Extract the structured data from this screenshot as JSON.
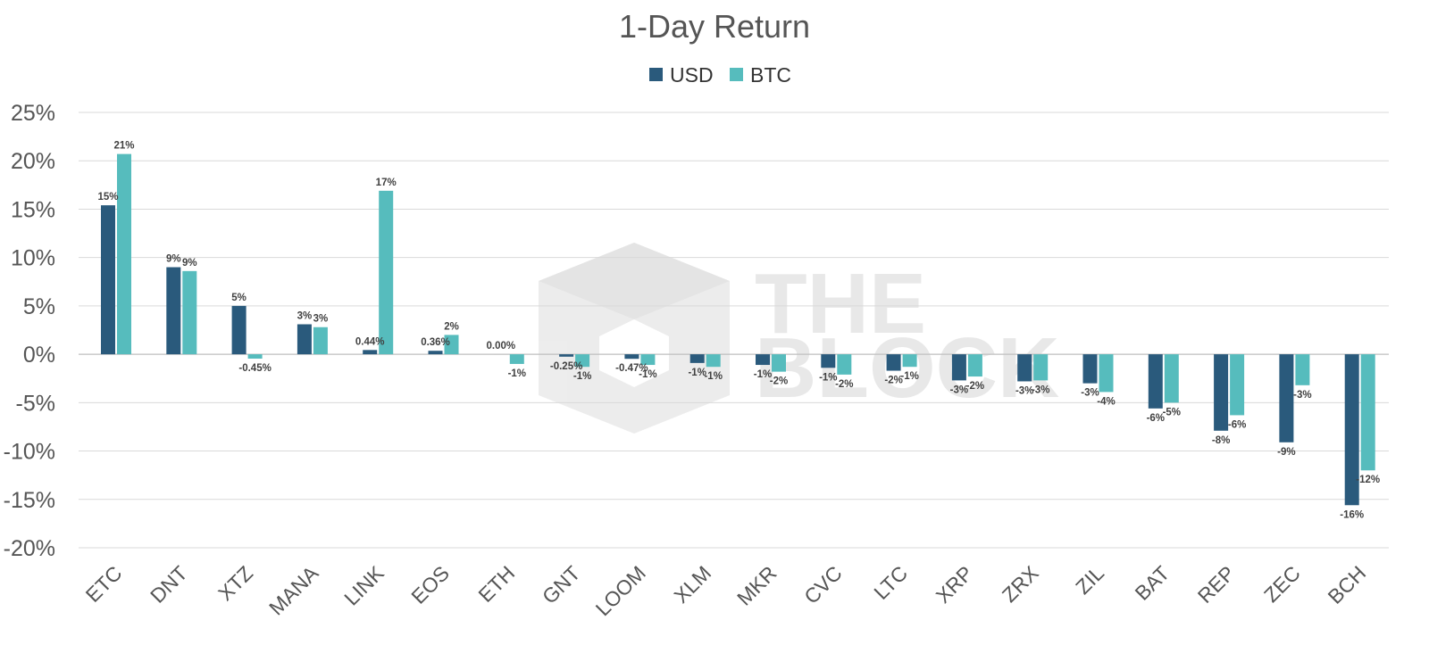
{
  "chart_data": {
    "type": "bar",
    "title": "1-Day Return",
    "xlabel": "",
    "ylabel": "",
    "ylim": [
      -20,
      25
    ],
    "y_ticks": [
      25,
      20,
      15,
      10,
      5,
      0,
      -5,
      -10,
      -15,
      -20
    ],
    "y_tick_labels": [
      "25%",
      "20%",
      "15%",
      "10%",
      "5%",
      "0%",
      "-5%",
      "-10%",
      "-15%",
      "-20%"
    ],
    "grid": true,
    "legend_position": "top-center",
    "categories": [
      "ETC",
      "DNT",
      "XTZ",
      "MANA",
      "LINK",
      "EOS",
      "ETH",
      "GNT",
      "LOOM",
      "XLM",
      "MKR",
      "CVC",
      "LTC",
      "XRP",
      "ZRX",
      "ZIL",
      "BAT",
      "REP",
      "ZEC",
      "BCH"
    ],
    "series": [
      {
        "name": "USD",
        "color": "#2a5a7c",
        "values": [
          15.4,
          9.0,
          5.0,
          3.1,
          0.44,
          0.36,
          0.0,
          -0.25,
          -0.47,
          -0.9,
          -1.1,
          -1.4,
          -1.7,
          -2.7,
          -2.8,
          -3.0,
          -5.6,
          -7.9,
          -9.1,
          -15.6
        ],
        "labels": [
          "15%",
          "9%",
          "5%",
          "3%",
          "0.44%",
          "0.36%",
          "0.00%",
          "-0.25%",
          "-0.47%",
          "-1%",
          "-1%",
          "-1%",
          "-2%",
          "-3%",
          "-3%",
          "-3%",
          "-6%",
          "-8%",
          "-9%",
          "-16%"
        ]
      },
      {
        "name": "BTC",
        "color": "#56bcbd",
        "values": [
          20.7,
          8.6,
          -0.45,
          2.8,
          16.9,
          2.0,
          -1.0,
          -1.3,
          -1.1,
          -1.3,
          -1.8,
          -2.1,
          -1.3,
          -2.3,
          -2.7,
          -3.9,
          -5.0,
          -6.3,
          -3.2,
          -12.0
        ],
        "labels": [
          "21%",
          "9%",
          "-0.45%",
          "3%",
          "17%",
          "2%",
          "-1%",
          "-1%",
          "-1%",
          "-1%",
          "-2%",
          "-2%",
          "-1%",
          "-2%",
          "-3%",
          "-4%",
          "-5%",
          "-6%",
          "-3%",
          "-12%"
        ]
      }
    ],
    "watermark": "THE BLOCK"
  }
}
